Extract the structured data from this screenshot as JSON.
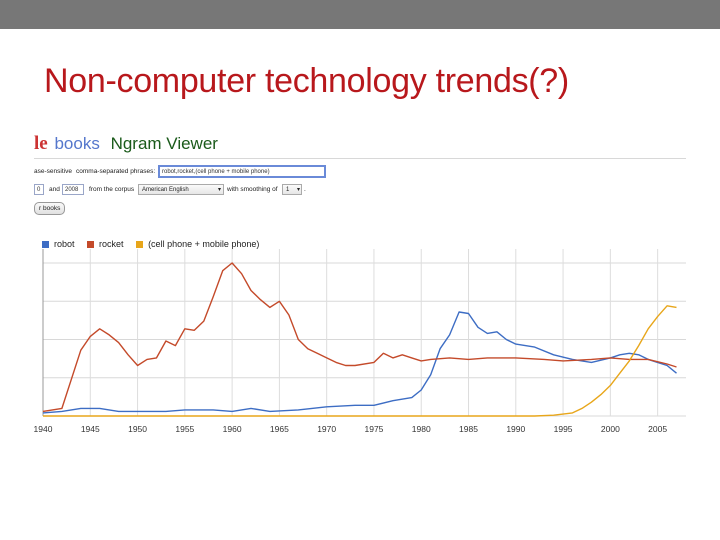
{
  "slide": {
    "title": "Non-computer technology trends(?)"
  },
  "ngram": {
    "logo_g": "le",
    "logo_books": "books",
    "logo_ngram": "Ngram Viewer",
    "case_label": "ase-sensitive",
    "comma_label": "comma-separated phrases:",
    "phrases": "robot,rocket,(cell phone + mobile phone)",
    "year_from": "0",
    "and_label": "and",
    "year_to": "2008",
    "corpus_label": "from the corpus",
    "corpus": "American English",
    "smoothing_label": "with smoothing of",
    "smoothing": "1",
    "search_button": "r books"
  },
  "colors": {
    "robot": "#3d6dc4",
    "rocket": "#c44a2a",
    "cell": "#e8a61a",
    "title": "#b8181c"
  },
  "chart_data": {
    "type": "line",
    "title": "",
    "xlabel": "",
    "ylabel": "",
    "xlim": [
      1940,
      2008
    ],
    "ylim": [
      0,
      1.0
    ],
    "grid": true,
    "legend_position": "top-left",
    "xticks": [
      "1940",
      "1945",
      "1950",
      "1955",
      "1960",
      "1965",
      "1970",
      "1975",
      "1980",
      "1985",
      "1990",
      "1995",
      "2000",
      "2005"
    ],
    "series": [
      {
        "name": "robot",
        "color": "#3d6dc4",
        "points": [
          [
            1940,
            0.02
          ],
          [
            1942,
            0.03
          ],
          [
            1944,
            0.05
          ],
          [
            1946,
            0.05
          ],
          [
            1948,
            0.03
          ],
          [
            1950,
            0.03
          ],
          [
            1953,
            0.03
          ],
          [
            1955,
            0.04
          ],
          [
            1958,
            0.04
          ],
          [
            1960,
            0.03
          ],
          [
            1962,
            0.05
          ],
          [
            1964,
            0.03
          ],
          [
            1967,
            0.04
          ],
          [
            1970,
            0.06
          ],
          [
            1973,
            0.07
          ],
          [
            1975,
            0.07
          ],
          [
            1977,
            0.1
          ],
          [
            1979,
            0.12
          ],
          [
            1980,
            0.17
          ],
          [
            1981,
            0.27
          ],
          [
            1982,
            0.44
          ],
          [
            1983,
            0.53
          ],
          [
            1984,
            0.68
          ],
          [
            1985,
            0.67
          ],
          [
            1986,
            0.58
          ],
          [
            1987,
            0.54
          ],
          [
            1988,
            0.55
          ],
          [
            1989,
            0.5
          ],
          [
            1990,
            0.47
          ],
          [
            1992,
            0.45
          ],
          [
            1994,
            0.4
          ],
          [
            1996,
            0.37
          ],
          [
            1998,
            0.35
          ],
          [
            2000,
            0.38
          ],
          [
            2001,
            0.4
          ],
          [
            2002,
            0.41
          ],
          [
            2003,
            0.4
          ],
          [
            2004,
            0.37
          ],
          [
            2005,
            0.35
          ],
          [
            2006,
            0.33
          ],
          [
            2007,
            0.28
          ]
        ]
      },
      {
        "name": "rocket",
        "color": "#c44a2a",
        "points": [
          [
            1940,
            0.03
          ],
          [
            1942,
            0.05
          ],
          [
            1944,
            0.43
          ],
          [
            1945,
            0.52
          ],
          [
            1946,
            0.57
          ],
          [
            1947,
            0.53
          ],
          [
            1948,
            0.48
          ],
          [
            1949,
            0.4
          ],
          [
            1950,
            0.33
          ],
          [
            1951,
            0.37
          ],
          [
            1952,
            0.38
          ],
          [
            1953,
            0.49
          ],
          [
            1954,
            0.46
          ],
          [
            1955,
            0.57
          ],
          [
            1956,
            0.56
          ],
          [
            1957,
            0.62
          ],
          [
            1958,
            0.78
          ],
          [
            1959,
            0.95
          ],
          [
            1960,
            1.0
          ],
          [
            1961,
            0.93
          ],
          [
            1962,
            0.82
          ],
          [
            1963,
            0.76
          ],
          [
            1964,
            0.71
          ],
          [
            1965,
            0.75
          ],
          [
            1966,
            0.66
          ],
          [
            1967,
            0.5
          ],
          [
            1968,
            0.44
          ],
          [
            1969,
            0.41
          ],
          [
            1970,
            0.38
          ],
          [
            1971,
            0.35
          ],
          [
            1972,
            0.33
          ],
          [
            1973,
            0.33
          ],
          [
            1975,
            0.35
          ],
          [
            1976,
            0.41
          ],
          [
            1977,
            0.38
          ],
          [
            1978,
            0.4
          ],
          [
            1979,
            0.38
          ],
          [
            1980,
            0.36
          ],
          [
            1981,
            0.37
          ],
          [
            1983,
            0.38
          ],
          [
            1985,
            0.37
          ],
          [
            1987,
            0.38
          ],
          [
            1990,
            0.38
          ],
          [
            1993,
            0.37
          ],
          [
            1995,
            0.36
          ],
          [
            1998,
            0.37
          ],
          [
            2000,
            0.38
          ],
          [
            2002,
            0.37
          ],
          [
            2004,
            0.37
          ],
          [
            2006,
            0.34
          ],
          [
            2007,
            0.32
          ]
        ]
      },
      {
        "name": "(cell phone + mobile phone)",
        "color": "#e8a61a",
        "points": [
          [
            1940,
            0.0
          ],
          [
            1970,
            0.0
          ],
          [
            1980,
            0.0
          ],
          [
            1988,
            0.0
          ],
          [
            1992,
            0.0
          ],
          [
            1994,
            0.005
          ],
          [
            1996,
            0.02
          ],
          [
            1997,
            0.05
          ],
          [
            1998,
            0.09
          ],
          [
            1999,
            0.14
          ],
          [
            2000,
            0.2
          ],
          [
            2001,
            0.28
          ],
          [
            2002,
            0.36
          ],
          [
            2003,
            0.46
          ],
          [
            2004,
            0.57
          ],
          [
            2005,
            0.65
          ],
          [
            2006,
            0.72
          ],
          [
            2007,
            0.71
          ]
        ]
      }
    ]
  }
}
